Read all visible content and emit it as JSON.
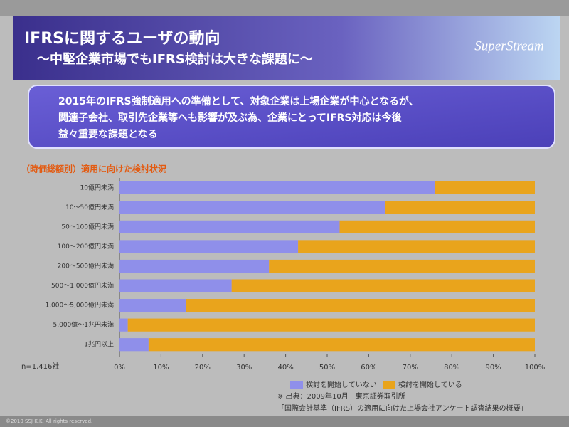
{
  "slide": {
    "title": "IFRSに関するユーザの動向",
    "subtitle": "～中堅企業市場でもIFRS検討は大きな課題に～",
    "logo": "SuperStream",
    "message": [
      "2015年のIFRS強制適用への準備として、対象企業は上場企業が中心となるが、",
      "関連子会社、取引先企業等へも影響が及ぶ為、企業にとってIFRS対応は今後",
      "益々重要な課題となる"
    ],
    "footer": "©2010 SSJ K.K. All rights reserved."
  },
  "chart_data": {
    "type": "stacked-barh",
    "title": "（時価総額別）適用に向けた検討状況",
    "note": "n=1,416社",
    "categories": [
      "10億円未満",
      "10～50億円未満",
      "50～100億円未満",
      "100～200億円未満",
      "200～500億円未満",
      "500～1,000億円未満",
      "1,000～5,000億円未満",
      "5,000億～1兆円未満",
      "1兆円以上"
    ],
    "series": [
      {
        "name": "検討を開始していない",
        "color": "#8f8fea",
        "values": [
          76,
          64,
          53,
          43,
          36,
          27,
          16,
          2,
          7
        ]
      },
      {
        "name": "検討を開始している",
        "color": "#e9a41c",
        "values": [
          24,
          36,
          47,
          57,
          64,
          73,
          84,
          98,
          93
        ]
      }
    ],
    "xlim": [
      0,
      100
    ],
    "xticks": [
      {
        "value": 0,
        "label": "0%"
      },
      {
        "value": 10,
        "label": "10%"
      },
      {
        "value": 20,
        "label": "20%"
      },
      {
        "value": 30,
        "label": "30%"
      },
      {
        "value": 40,
        "label": "40%"
      },
      {
        "value": 50,
        "label": "50%"
      },
      {
        "value": 60,
        "label": "60%"
      },
      {
        "value": 70,
        "label": "70%"
      },
      {
        "value": 80,
        "label": "80%"
      },
      {
        "value": 90,
        "label": "90%"
      },
      {
        "value": 100,
        "label": "100%"
      }
    ],
    "source": [
      "※ 出典：2009年10月　東京証券取引所",
      "「国際会計基準（IFRS）の適用に向けた上場会社アンケート調査結果の概要」"
    ]
  }
}
